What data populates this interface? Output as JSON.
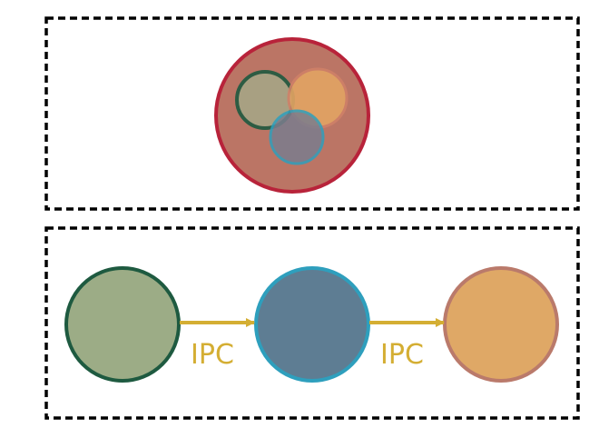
{
  "diagram": {
    "top_panel": {
      "container_color": "#b8233a",
      "container_fill": "#bb7565",
      "components": [
        {
          "name": "green-process",
          "stroke": "#1e5a40",
          "fill": "#a7a586"
        },
        {
          "name": "orange-process",
          "stroke": "#cf8168",
          "fill": "#e2a463"
        },
        {
          "name": "blue-process",
          "stroke": "#2e9fbd",
          "fill": "#7b7d8d"
        }
      ]
    },
    "bottom_panel": {
      "processes": [
        {
          "name": "green-process",
          "stroke": "#1e5a40",
          "fill": "#9cac86"
        },
        {
          "name": "blue-process",
          "stroke": "#2e9fbd",
          "fill": "#5e7d93"
        },
        {
          "name": "orange-process",
          "stroke": "#ba7a6b",
          "fill": "#dfa866"
        }
      ],
      "connections": [
        {
          "label": "IPC",
          "color": "#d4ae33"
        },
        {
          "label": "IPC",
          "color": "#d4ae33"
        }
      ]
    },
    "border_color": "#000000"
  }
}
